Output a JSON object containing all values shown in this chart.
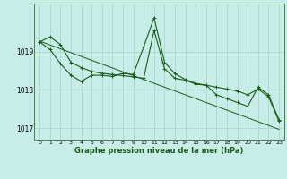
{
  "xlabel": "Graphe pression niveau de la mer (hPa)",
  "background_color": "#c8ece8",
  "grid_color": "#a8d8d0",
  "line_color": "#1a5c1a",
  "hours": [
    0,
    1,
    2,
    3,
    4,
    5,
    6,
    7,
    8,
    9,
    10,
    11,
    12,
    13,
    14,
    15,
    16,
    17,
    18,
    19,
    20,
    21,
    22,
    23
  ],
  "line1": [
    1019.25,
    1019.38,
    1019.18,
    1018.72,
    1018.58,
    1018.48,
    1018.43,
    1018.4,
    1018.37,
    1018.34,
    1018.3,
    1019.55,
    1018.55,
    1018.3,
    1018.25,
    1018.15,
    1018.12,
    1018.07,
    1018.02,
    1017.97,
    1017.87,
    1018.02,
    1017.82,
    1017.18
  ],
  "line2": [
    1019.25,
    1019.05,
    1018.68,
    1018.38,
    1018.22,
    1018.38,
    1018.38,
    1018.35,
    1018.43,
    1018.4,
    1019.12,
    1019.88,
    1018.72,
    1018.42,
    1018.27,
    1018.17,
    1018.12,
    1017.87,
    1017.77,
    1017.67,
    1017.57,
    1018.07,
    1017.87,
    1017.22
  ],
  "trend": [
    1019.27,
    1019.17,
    1019.07,
    1018.97,
    1018.87,
    1018.77,
    1018.67,
    1018.57,
    1018.47,
    1018.37,
    1018.27,
    1018.17,
    1018.07,
    1017.97,
    1017.87,
    1017.77,
    1017.67,
    1017.57,
    1017.47,
    1017.37,
    1017.27,
    1017.17,
    1017.07,
    1016.97
  ],
  "ylim": [
    1016.7,
    1020.25
  ],
  "yticks": [
    1017,
    1018,
    1019
  ],
  "xtick_fontsize": 4.5,
  "ytick_fontsize": 5.5,
  "xlabel_fontsize": 6.0,
  "marker": "+"
}
